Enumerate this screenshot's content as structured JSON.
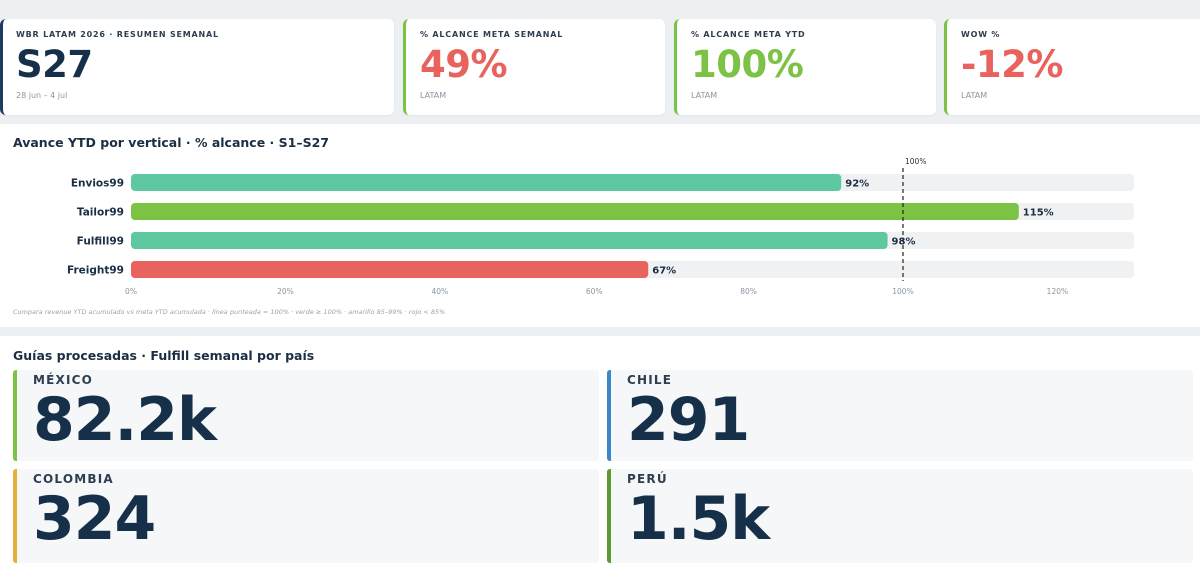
{
  "kpis": [
    {
      "label": "WBR LATAM 2026 · RESUMEN SEMANAL",
      "value": "S27",
      "sub": "28 jun – 4 jul",
      "color": "#163049"
    },
    {
      "label": "% ALCANCE META SEMANAL",
      "value": "49%",
      "sub": "LATAM",
      "color": "#e8625e"
    },
    {
      "label": "% ALCANCE META YTD",
      "value": "100%",
      "sub": "LATAM",
      "color": "#7cc245"
    },
    {
      "label": "WOW %",
      "value": "-12%",
      "sub": "LATAM",
      "color": "#e8625e"
    }
  ],
  "ytd": {
    "title": "Avance YTD por vertical · % alcance · S1–S27",
    "footnote": "Compara revenue YTD acumulado vs meta YTD acumulada · línea punteada = 100% · verde ≥ 100% · amarillo 85–99% · rojo < 85%"
  },
  "chart_data": {
    "type": "bar",
    "orientation": "horizontal",
    "categories": [
      "Envios99",
      "Tailor99",
      "Fulfill99",
      "Freight99"
    ],
    "values": [
      92,
      115,
      98,
      67
    ],
    "value_labels": [
      "92%",
      "115%",
      "98%",
      "67%"
    ],
    "bar_colors": [
      "#5ec8a0",
      "#7cc245",
      "#5ec8a0",
      "#e8625e"
    ],
    "xlim": [
      0,
      130
    ],
    "xticks": [
      0,
      20,
      40,
      60,
      80,
      100,
      120
    ],
    "xtick_labels": [
      "0%",
      "20%",
      "40%",
      "60%",
      "80%",
      "100%",
      "120%"
    ],
    "reference_line": {
      "value": 100,
      "label": "100%"
    },
    "grid": false
  },
  "guias": {
    "title": "Guías procesadas · Fulfill semanal por país",
    "countries": [
      {
        "name": "MÉXICO",
        "value": "82.2k",
        "color": "#7cc245"
      },
      {
        "name": "CHILE",
        "value": "291",
        "color": "#3a86c8"
      },
      {
        "name": "COLOMBIA",
        "value": "324",
        "color": "#e3b13a"
      },
      {
        "name": "PERÚ",
        "value": "1.5k",
        "color": "#5a9a2e"
      }
    ]
  }
}
